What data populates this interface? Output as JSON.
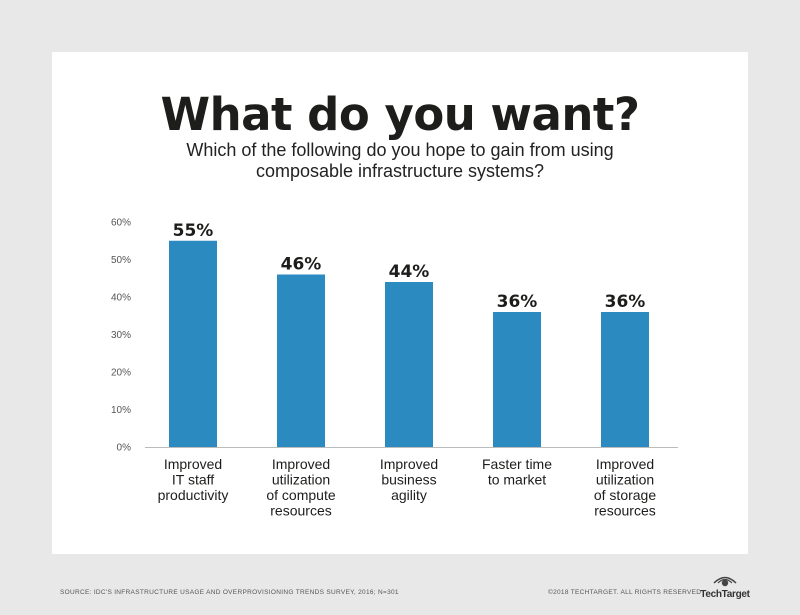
{
  "title": "What do you want?",
  "subtitle_line1": "Which of the following do you hope to gain from using",
  "subtitle_line2": "composable infrastructure systems?",
  "colors": {
    "bar": "#2b8bc1",
    "background": "#e8e8e8",
    "card": "#ffffff"
  },
  "chart_data": {
    "type": "bar",
    "categories": [
      [
        "Improved",
        "IT staff",
        "productivity"
      ],
      [
        "Improved",
        "utilization",
        "of compute",
        "resources"
      ],
      [
        "Improved",
        "business",
        "agility"
      ],
      [
        "Faster time",
        "to market"
      ],
      [
        "Improved",
        "utilization",
        "of storage",
        "resources"
      ]
    ],
    "values": [
      55,
      46,
      44,
      36,
      36
    ],
    "data_labels": [
      "55%",
      "46%",
      "44%",
      "36%",
      "36%"
    ],
    "yticks": [
      "0%",
      "10%",
      "20%",
      "30%",
      "40%",
      "50%",
      "60%"
    ],
    "ylim": [
      0,
      60
    ],
    "grid": false
  },
  "footer": {
    "source": "SOURCE: IDC'S INFRASTRUCTURE USAGE AND OVERPROVISIONING TRENDS SURVEY, 2016; N=301",
    "copyright": "©2018 TECHTARGET. ALL RIGHTS RESERVED",
    "logo_text": "TechTarget",
    "logo_icon": "eye-icon"
  }
}
